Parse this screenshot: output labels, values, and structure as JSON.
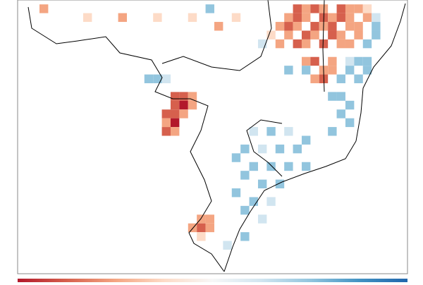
{
  "map": {
    "extent": {
      "lon": [
        -78,
        -33.4
      ],
      "lat": [
        -3,
        -34
      ]
    },
    "value_range": [
      -1,
      1
    ],
    "colorbar": {
      "colors": [
        "#b2182b",
        "#d6604d",
        "#f4a582",
        "#fddbc7",
        "#f7f7f7",
        "#d1e5f0",
        "#92c5de",
        "#4393c3",
        "#2166ac"
      ]
    },
    "cells": [
      [
        -46,
        -4,
        -0.7
      ],
      [
        -45,
        -4,
        -0.5
      ],
      [
        -44,
        -4,
        -0.8
      ],
      [
        -43,
        -4,
        -0.6
      ],
      [
        -41,
        -4,
        -0.7
      ],
      [
        -40,
        -4,
        -0.5
      ],
      [
        -39,
        -4,
        -0.6
      ],
      [
        -38,
        -4,
        -0.3
      ],
      [
        -47,
        -5,
        -0.6
      ],
      [
        -46,
        -5,
        -0.8
      ],
      [
        -45,
        -5,
        -0.6
      ],
      [
        -43,
        -5,
        -0.7
      ],
      [
        -42,
        -5,
        -0.5
      ],
      [
        -41,
        -5,
        -0.8
      ],
      [
        -40,
        -5,
        -0.6
      ],
      [
        -38,
        -5,
        -0.4
      ],
      [
        -37,
        -5,
        0.3
      ],
      [
        -48,
        -6,
        -0.4
      ],
      [
        -47,
        -6,
        -0.7
      ],
      [
        -46,
        -6,
        -0.6
      ],
      [
        -44,
        -6,
        -0.8
      ],
      [
        -43,
        -6,
        -0.6
      ],
      [
        -42,
        -6,
        -0.7
      ],
      [
        -40,
        -6,
        -0.5
      ],
      [
        -39,
        -6,
        -0.6
      ],
      [
        -37,
        -6,
        0.4
      ],
      [
        -49,
        -7,
        -0.3
      ],
      [
        -47,
        -7,
        -0.6
      ],
      [
        -45,
        -7,
        -0.7
      ],
      [
        -44,
        -7,
        -0.5
      ],
      [
        -42,
        -7,
        -0.8
      ],
      [
        -41,
        -7,
        -0.6
      ],
      [
        -39,
        -7,
        -0.4
      ],
      [
        -37,
        -7,
        0.5
      ],
      [
        -50,
        -8,
        0.3
      ],
      [
        -48,
        -8,
        -0.5
      ],
      [
        -46,
        -8,
        -0.7
      ],
      [
        -45,
        -8,
        -0.6
      ],
      [
        -43,
        -8,
        -0.7
      ],
      [
        -41,
        -8,
        -0.5
      ],
      [
        -40,
        -8,
        -0.4
      ],
      [
        -38,
        -8,
        0.4
      ],
      [
        -53,
        -5,
        -0.3
      ],
      [
        -55,
        -6,
        -0.4
      ],
      [
        -58,
        -5,
        -0.3
      ],
      [
        -62,
        -5,
        -0.3
      ],
      [
        -66,
        -5,
        -0.4
      ],
      [
        -70,
        -5,
        -0.3
      ],
      [
        -75,
        -4,
        -0.4
      ],
      [
        -56,
        -4,
        0.5
      ],
      [
        -45,
        -10,
        -0.6
      ],
      [
        -44,
        -10,
        -0.7
      ],
      [
        -42,
        -10,
        -0.5
      ],
      [
        -40,
        -10,
        0.3
      ],
      [
        -39,
        -10,
        0.5
      ],
      [
        -38,
        -10,
        0.4
      ],
      [
        -47,
        -11,
        0.4
      ],
      [
        -45,
        -11,
        0.5
      ],
      [
        -43,
        -11,
        -0.6
      ],
      [
        -42,
        -11,
        -0.5
      ],
      [
        -40,
        -11,
        0.4
      ],
      [
        -38,
        -11,
        0.6
      ],
      [
        -44,
        -12,
        -0.6
      ],
      [
        -43,
        -12,
        -0.7
      ],
      [
        -41,
        -12,
        0.4
      ],
      [
        -39,
        -12,
        0.5
      ],
      [
        -60,
        -14,
        -0.7
      ],
      [
        -59,
        -14,
        -0.8
      ],
      [
        -58,
        -14,
        -0.6
      ],
      [
        -60,
        -15,
        -0.8
      ],
      [
        -59,
        -15,
        -0.9
      ],
      [
        -58,
        -15,
        -0.6
      ],
      [
        -61,
        -16,
        -0.7
      ],
      [
        -60,
        -16,
        -0.8
      ],
      [
        -59,
        -16,
        -0.5
      ],
      [
        -61,
        -17,
        -0.6
      ],
      [
        -60,
        -17,
        -0.9
      ],
      [
        -61,
        -18,
        -0.7
      ],
      [
        -60,
        -18,
        -0.5
      ],
      [
        -63,
        -12,
        0.4
      ],
      [
        -62,
        -12,
        0.5
      ],
      [
        -61,
        -12,
        0.3
      ],
      [
        -42,
        -14,
        0.4
      ],
      [
        -41,
        -14,
        0.5
      ],
      [
        -40,
        -15,
        0.6
      ],
      [
        -41,
        -16,
        0.5
      ],
      [
        -40,
        -17,
        0.6
      ],
      [
        -42,
        -18,
        0.4
      ],
      [
        -51,
        -18,
        0.3
      ],
      [
        -49,
        -18,
        0.4
      ],
      [
        -47,
        -18,
        0.3
      ],
      [
        -45,
        -19,
        0.4
      ],
      [
        -52,
        -20,
        0.4
      ],
      [
        -50,
        -20,
        0.3
      ],
      [
        -48,
        -20,
        0.5
      ],
      [
        -46,
        -20,
        0.4
      ],
      [
        -53,
        -21,
        0.5
      ],
      [
        -51,
        -22,
        0.4
      ],
      [
        -49,
        -22,
        0.6
      ],
      [
        -47,
        -22,
        0.5
      ],
      [
        -45,
        -22,
        0.4
      ],
      [
        -52,
        -23,
        0.5
      ],
      [
        -50,
        -24,
        0.6
      ],
      [
        -48,
        -24,
        0.4
      ],
      [
        -53,
        -25,
        0.4
      ],
      [
        -51,
        -26,
        0.5
      ],
      [
        -49,
        -26,
        0.3
      ],
      [
        -52,
        -27,
        0.4
      ],
      [
        -50,
        -28,
        0.3
      ],
      [
        -57,
        -28,
        -0.6
      ],
      [
        -56,
        -28,
        -0.4
      ],
      [
        -58,
        -29,
        -0.5
      ],
      [
        -57,
        -29,
        -0.7
      ],
      [
        -56,
        -29,
        -0.4
      ],
      [
        -57,
        -30,
        -0.3
      ],
      [
        -54,
        -31,
        0.3
      ],
      [
        -52,
        -30,
        0.4
      ]
    ]
  }
}
